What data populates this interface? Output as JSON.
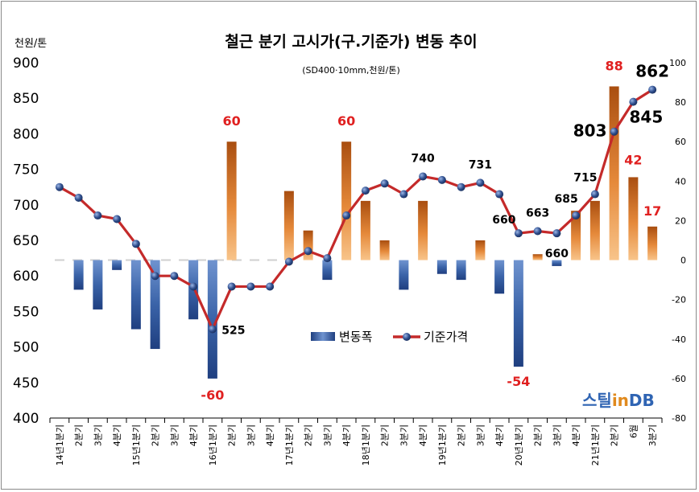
{
  "header": {
    "unit_label": "천원/톤",
    "title": "철근 분기 고시가(구.기준가) 변동 추이",
    "subtitle": "(SD400·10mm,천원/톤)"
  },
  "brand": {
    "part1": "스틸",
    "part2": "in",
    "part3": "DB"
  },
  "chart_data": {
    "type": "bar+line",
    "categories": [
      "14년1분기",
      "2분기",
      "3분기",
      "4분기",
      "15년1분기",
      "2분기",
      "3분기",
      "4분기",
      "16년1분기",
      "2분기",
      "3분기",
      "4분기",
      "17년1분기",
      "2분기",
      "3분기",
      "4분기",
      "18년1분기",
      "2분기",
      "3분기",
      "4분기",
      "19년1분기",
      "2분기",
      "3분기",
      "4분기",
      "20년1분기",
      "2분기",
      "3분기",
      "4분기",
      "21년1분기",
      "2분기",
      "6월",
      "3분기"
    ],
    "series": [
      {
        "name": "변동폭",
        "type": "bar",
        "axis": "right",
        "values": [
          0,
          -15,
          -25,
          -5,
          -35,
          -45,
          0,
          -30,
          -60,
          60,
          0,
          0,
          35,
          15,
          -10,
          60,
          30,
          10,
          -15,
          30,
          -7,
          -10,
          10,
          -17,
          -54,
          3,
          -3,
          25,
          30,
          88,
          42,
          17
        ]
      },
      {
        "name": "기준가격",
        "type": "line",
        "axis": "left",
        "values": [
          725,
          710,
          685,
          680,
          645,
          600,
          600,
          585,
          525,
          585,
          585,
          585,
          620,
          635,
          625,
          685,
          720,
          730,
          715,
          740,
          735,
          725,
          731,
          715,
          660,
          663,
          660,
          685,
          715,
          803,
          845,
          862
        ]
      }
    ],
    "data_labels": [
      {
        "series": "변동폭",
        "index": 8,
        "text": "-60",
        "color": "#e02020"
      },
      {
        "series": "변동폭",
        "index": 9,
        "text": "60",
        "color": "#e02020"
      },
      {
        "series": "변동폭",
        "index": 15,
        "text": "60",
        "color": "#e02020"
      },
      {
        "series": "변동폭",
        "index": 24,
        "text": "-54",
        "color": "#e02020"
      },
      {
        "series": "변동폭",
        "index": 29,
        "text": "88",
        "color": "#e02020"
      },
      {
        "series": "변동폭",
        "index": 30,
        "text": "42",
        "color": "#e02020"
      },
      {
        "series": "변동폭",
        "index": 31,
        "text": "17",
        "color": "#e02020"
      },
      {
        "series": "기준가격",
        "index": 8,
        "text": "525",
        "color": "#000000"
      },
      {
        "series": "기준가격",
        "index": 19,
        "text": "740",
        "color": "#000000"
      },
      {
        "series": "기준가격",
        "index": 22,
        "text": "731",
        "color": "#000000"
      },
      {
        "series": "기준가격",
        "index": 24,
        "text": "660",
        "color": "#000000"
      },
      {
        "series": "기준가격",
        "index": 25,
        "text": "663",
        "color": "#000000"
      },
      {
        "series": "기준가격",
        "index": 26,
        "text": "660",
        "color": "#000000"
      },
      {
        "series": "기준가격",
        "index": 27,
        "text": "685",
        "color": "#000000"
      },
      {
        "series": "기준가격",
        "index": 28,
        "text": "715",
        "color": "#000000"
      },
      {
        "series": "기준가격",
        "index": 29,
        "text": "803",
        "color": "#000000"
      },
      {
        "series": "기준가격",
        "index": 30,
        "text": "845",
        "color": "#000000"
      },
      {
        "series": "기준가격",
        "index": 31,
        "text": "862",
        "color": "#000000"
      }
    ],
    "left_axis": {
      "range": [
        400,
        900
      ],
      "ticks": [
        900,
        850,
        800,
        750,
        700,
        650,
        600,
        550,
        500,
        450,
        400
      ]
    },
    "right_axis": {
      "range": [
        -80,
        100
      ],
      "ticks": [
        100,
        80,
        60,
        40,
        20,
        0,
        -20,
        -40,
        -60,
        -80
      ]
    },
    "legend": {
      "position": "center",
      "bar_label": "변동폭",
      "line_label": "기준가격"
    },
    "grid": false,
    "colors": {
      "bar_positive": "#e5893a",
      "bar_negative": "#3a63a8",
      "line": "#c42a2a",
      "marker": "#2e4d8c",
      "label_red": "#e02020"
    }
  }
}
